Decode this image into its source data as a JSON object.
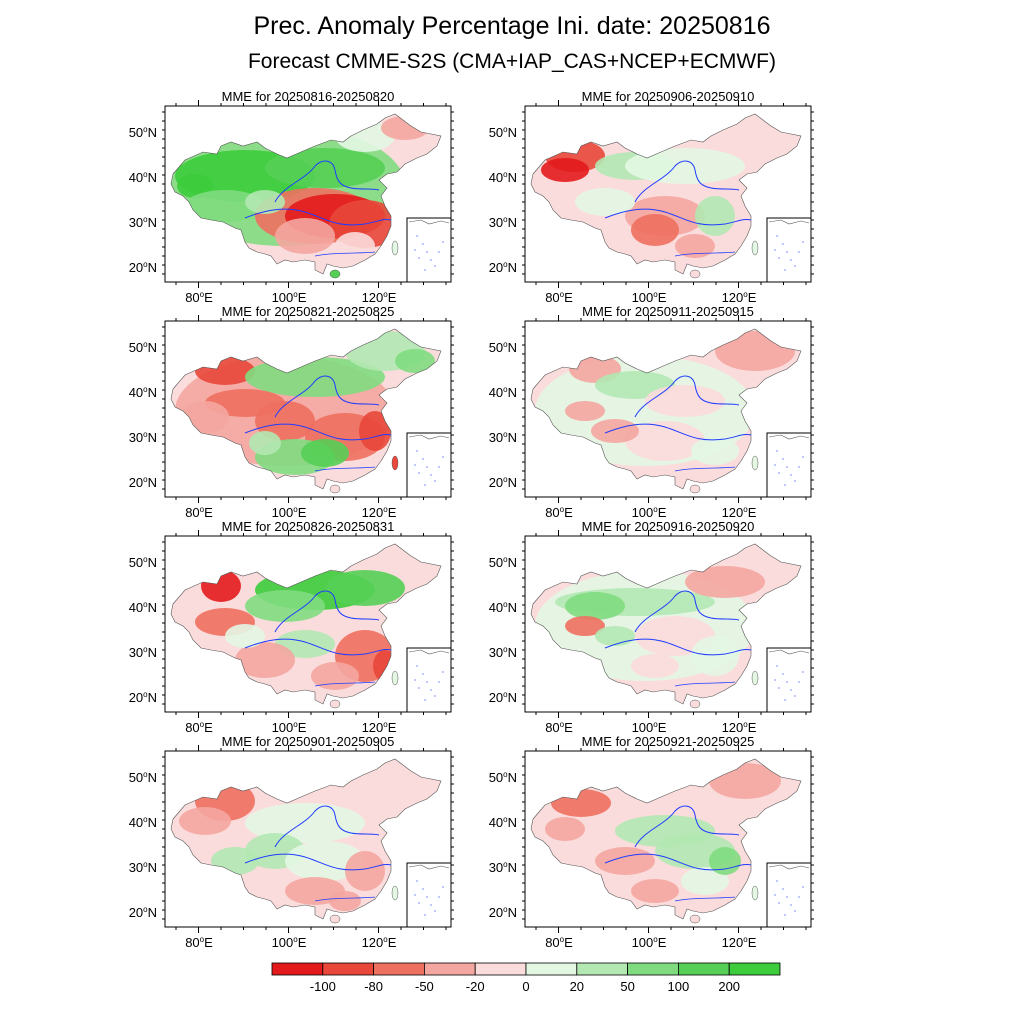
{
  "title": "Prec. Anomaly Percentage Ini. date: 20250816",
  "subtitle": "Forecast CMME-S2S (CMA+IAP_CAS+NCEP+ECMWF)",
  "axes": {
    "lat_labels": [
      "50",
      "40",
      "30",
      "20"
    ],
    "lat_suffix": "N",
    "lon_labels": [
      "80",
      "100",
      "120"
    ],
    "lon_suffix": "E",
    "degree_symbol": "o"
  },
  "panels": [
    {
      "label": "MME for 20250816-20250820",
      "pattern": "a"
    },
    {
      "label": "MME for 20250821-20250825",
      "pattern": "b"
    },
    {
      "label": "MME for 20250826-20250831",
      "pattern": "c"
    },
    {
      "label": "MME for 20250901-20250905",
      "pattern": "d"
    },
    {
      "label": "MME for 20250906-20250910",
      "pattern": "e"
    },
    {
      "label": "MME for 20250911-20250915",
      "pattern": "f"
    },
    {
      "label": "MME for 20250916-20250920",
      "pattern": "g"
    },
    {
      "label": "MME for 20250921-20250925",
      "pattern": "h"
    }
  ],
  "colorbar": {
    "labels": [
      "-100",
      "-80",
      "-50",
      "-20",
      "0",
      "20",
      "50",
      "100",
      "200"
    ],
    "colors": [
      "#e31a1c",
      "#e8473a",
      "#ee7061",
      "#f4a6a0",
      "#fbdcdc",
      "#e3f7e3",
      "#b3e8b3",
      "#80db80",
      "#55cf55",
      "#3ccc3c"
    ]
  },
  "colors": {
    "river": "#1f3cff",
    "border": "#000000"
  }
}
